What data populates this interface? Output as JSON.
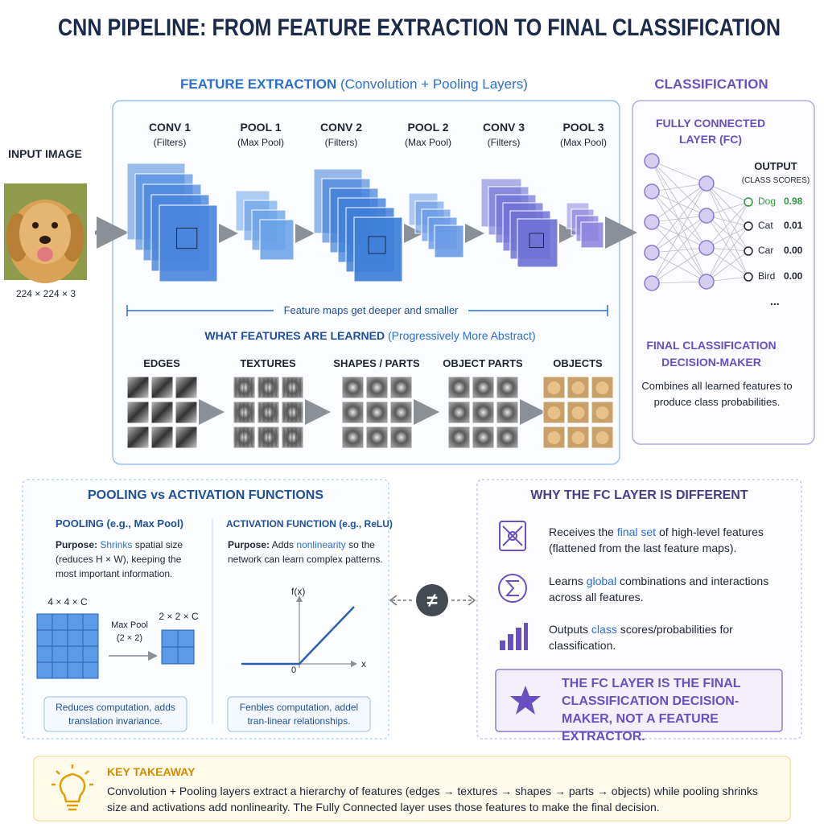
{
  "title": "CNN PIPELINE: FROM FEATURE EXTRACTION TO FINAL CLASSIFICATION",
  "input": {
    "label": "INPUT IMAGE",
    "size": "224 × 224 × 3"
  },
  "feature_extraction": {
    "heading": "FEATURE EXTRACTION",
    "subheading": "(Convolution + Pooling Layers)",
    "layers": [
      {
        "name": "CONV 1",
        "detail": "(Filters)"
      },
      {
        "name": "POOL 1",
        "detail": "(Max Pool)"
      },
      {
        "name": "CONV 2",
        "detail": "(Filters)"
      },
      {
        "name": "POOL 2",
        "detail": "(Max Pool)"
      },
      {
        "name": "CONV 3",
        "detail": "(Filters)"
      },
      {
        "name": "POOL 3",
        "detail": "(Max Pool)"
      }
    ],
    "note": "Feature maps get deeper and smaller",
    "learned": {
      "heading": "WHAT FEATURES ARE LEARNED",
      "subheading": "(Progressively More Abstract)",
      "stages": [
        "EDGES",
        "TEXTURES",
        "SHAPES / PARTS",
        "OBJECT PARTS",
        "OBJECTS"
      ]
    }
  },
  "classification": {
    "heading": "CLASSIFICATION",
    "layer": "FULLY CONNECTED LAYER (FC)",
    "output": {
      "heading": "OUTPUT",
      "subheading": "(CLASS SCORES)",
      "classes": [
        {
          "label": "Dog",
          "score": "0.98"
        },
        {
          "label": "Cat",
          "score": "0.01"
        },
        {
          "label": "Car",
          "score": "0.00"
        },
        {
          "label": "Bird",
          "score": "0.00"
        }
      ],
      "more": "..."
    },
    "role": "FINAL CLASSIFICATION DECISION-MAKER",
    "description": "Combines all learned features to produce class probabilities."
  },
  "pooling_vs_activation": {
    "heading": "POOLING vs ACTIVATION FUNCTIONS",
    "pooling": {
      "title": "POOLING (e.g., Max Pool)",
      "purpose_label": "Purpose:",
      "purpose_highlight": "Shrinks",
      "purpose_text": "spatial size (reduces H × W), keeping the most important information.",
      "input_dim": "4 × 4 × C",
      "operation": "Max Pool (2 × 2)",
      "output_dim": "2 × 2 × C",
      "note": "Reduces computation, adds translation invariance."
    },
    "activation": {
      "title": "ACTIVATION FUNCTION (e.g., ReLU)",
      "purpose_label": "Purpose:",
      "purpose_before": "Adds",
      "purpose_highlight": "nonlinearity",
      "purpose_after": "so the network can learn complex patterns.",
      "y_axis": "f(x)",
      "x_axis": "x",
      "origin": "0",
      "note": "Fenbles computation, addel tran-linear relationships."
    },
    "symbol": "≠"
  },
  "fc_difference": {
    "heading": "WHY THE FC LAYER IS DIFFERENT",
    "points": [
      {
        "before": "Receives the",
        "highlight": "final set",
        "after": "of high-level features (flattened from the last feature maps)."
      },
      {
        "before": "Learns",
        "highlight": "global",
        "after": "combinations and interactions across all features."
      },
      {
        "before": "Outputs",
        "highlight": "class",
        "after": "scores/probabilities for classification."
      }
    ],
    "callout": "THE FC LAYER IS THE FINAL CLASSIFICATION DECISION-MAKER, NOT A FEATURE EXTRACTOR."
  },
  "takeaway": {
    "heading": "KEY TAKEAWAY",
    "text": "Convolution + Pooling layers extract a hierarchy of features (edges → textures → shapes → parts → objects) while pooling shrinks size and activations add nonlinearity. The Fully Connected layer uses those features to make the final decision."
  }
}
